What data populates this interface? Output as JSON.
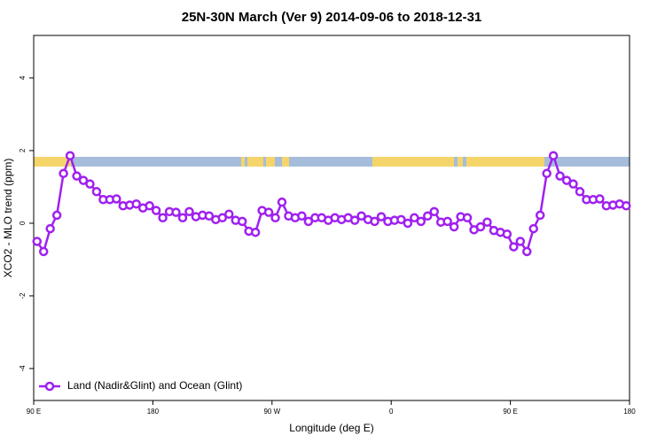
{
  "chart_data": {
    "type": "line",
    "title": "25N-30N March (Ver 9)   2014-09-06 to 2018-12-31",
    "xlabel": "Longitude (deg E)",
    "ylabel": "XCO2 - MLO trend (ppm)",
    "xlim": [
      90,
      540
    ],
    "ylim": [
      -4.88,
      5.17
    ],
    "xticks": [
      {
        "value": 90,
        "label": "90 E"
      },
      {
        "value": 180,
        "label": "180"
      },
      {
        "value": 270,
        "label": "90 W"
      },
      {
        "value": 360,
        "label": "0"
      },
      {
        "value": 450,
        "label": "90 E"
      },
      {
        "value": 540,
        "label": "180"
      }
    ],
    "yticks": [
      -4,
      -2,
      0,
      2,
      4
    ],
    "grid": false,
    "legend": "bottomleft",
    "x": [
      92.5,
      97.5,
      102.5,
      107.5,
      112.5,
      117.5,
      122.5,
      127.5,
      132.5,
      137.5,
      142.5,
      147.5,
      152.5,
      157.5,
      162.5,
      167.5,
      172.5,
      177.5,
      182.5,
      187.5,
      192.5,
      197.5,
      202.5,
      207.5,
      212.5,
      217.5,
      222.5,
      227.5,
      232.5,
      237.5,
      242.5,
      247.5,
      252.5,
      257.5,
      262.5,
      267.5,
      272.5,
      277.5,
      282.5,
      287.5,
      292.5,
      297.5,
      302.5,
      307.5,
      312.5,
      317.5,
      322.5,
      327.5,
      332.5,
      337.5,
      342.5,
      347.5,
      352.5,
      357.5,
      362.5,
      367.5,
      372.5,
      377.5,
      382.5,
      387.5,
      392.5,
      397.5,
      402.5,
      407.5,
      412.5,
      417.5,
      422.5,
      427.5,
      432.5,
      437.5,
      442.5,
      447.5,
      452.5,
      457.5,
      462.5,
      467.5,
      472.5,
      477.5,
      482.5,
      487.5,
      492.5,
      497.5,
      502.5,
      507.5,
      512.5,
      517.5,
      522.5,
      527.5,
      532.5,
      537.5
    ],
    "series": [
      {
        "name": "Land (Nadir&Glint) and Ocean (Glint)",
        "color": "#a020f0",
        "values": [
          -0.5,
          -0.78,
          -0.15,
          0.22,
          1.37,
          1.86,
          1.3,
          1.18,
          1.08,
          0.87,
          0.65,
          0.65,
          0.67,
          0.48,
          0.5,
          0.53,
          0.42,
          0.48,
          0.35,
          0.15,
          0.32,
          0.3,
          0.15,
          0.32,
          0.18,
          0.22,
          0.2,
          0.1,
          0.15,
          0.25,
          0.08,
          0.05,
          -0.22,
          -0.25,
          0.35,
          0.3,
          0.15,
          0.58,
          0.2,
          0.15,
          0.2,
          0.05,
          0.15,
          0.15,
          0.08,
          0.15,
          0.1,
          0.15,
          0.08,
          0.2,
          0.1,
          0.05,
          0.18,
          0.05,
          0.08,
          0.1,
          0.0,
          0.15,
          0.05,
          0.2,
          0.32,
          0.03,
          0.05,
          -0.1,
          0.18,
          0.15,
          -0.18,
          -0.1,
          0.03,
          -0.2,
          -0.25,
          -0.3,
          -0.65,
          -0.5,
          -0.78,
          -0.15,
          0.22,
          1.37,
          1.86,
          1.3,
          1.18,
          1.08,
          0.87,
          0.65,
          0.65,
          0.67,
          0.48,
          0.5,
          0.53,
          0.48
        ]
      }
    ]
  }
}
